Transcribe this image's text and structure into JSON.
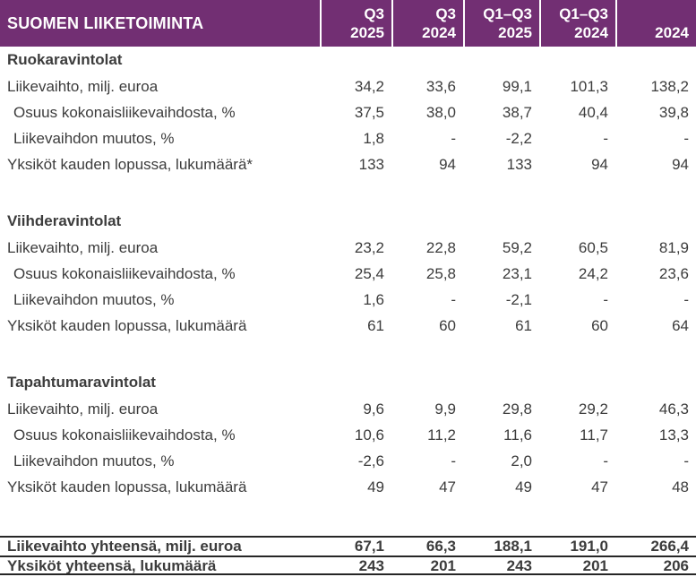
{
  "colors": {
    "header_bg": "#722F73",
    "header_text": "#FFFFFF",
    "body_text": "#3C3C3C",
    "rule": "#262626",
    "page_bg": "#FFFFFF"
  },
  "chart_data": {
    "type": "table",
    "title": "SUOMEN LIIKETOIMINTA",
    "columns": [
      {
        "top": "Q3",
        "bottom": "2025"
      },
      {
        "top": "Q3",
        "bottom": "2024"
      },
      {
        "top": "Q1–Q3",
        "bottom": "2025"
      },
      {
        "top": "Q1–Q3",
        "bottom": "2024"
      },
      {
        "top": "",
        "bottom": "2024"
      }
    ],
    "sections": [
      {
        "name": "Ruokaravintolat",
        "rows": [
          {
            "label": "Liikevaihto, milj. euroa",
            "indent": false,
            "values": [
              "34,2",
              "33,6",
              "99,1",
              "101,3",
              "138,2"
            ]
          },
          {
            "label": "Osuus kokonaisliikevaihdosta, %",
            "indent": true,
            "values": [
              "37,5",
              "38,0",
              "38,7",
              "40,4",
              "39,8"
            ]
          },
          {
            "label": "Liikevaihdon muutos, %",
            "indent": true,
            "values": [
              "1,8",
              "-",
              "-2,2",
              "-",
              "-"
            ]
          },
          {
            "label": "Yksiköt kauden lopussa, lukumäärä*",
            "indent": false,
            "values": [
              "133",
              "94",
              "133",
              "94",
              "94"
            ]
          }
        ]
      },
      {
        "name": "Viihderavintolat",
        "rows": [
          {
            "label": "Liikevaihto, milj. euroa",
            "indent": false,
            "values": [
              "23,2",
              "22,8",
              "59,2",
              "60,5",
              "81,9"
            ]
          },
          {
            "label": "Osuus kokonaisliikevaihdosta, %",
            "indent": true,
            "values": [
              "25,4",
              "25,8",
              "23,1",
              "24,2",
              "23,6"
            ]
          },
          {
            "label": "Liikevaihdon muutos, %",
            "indent": true,
            "values": [
              "1,6",
              "-",
              "-2,1",
              "-",
              "-"
            ]
          },
          {
            "label": "Yksiköt kauden lopussa, lukumäärä",
            "indent": false,
            "values": [
              "61",
              "60",
              "61",
              "60",
              "64"
            ]
          }
        ]
      },
      {
        "name": "Tapahtumaravintolat",
        "rows": [
          {
            "label": "Liikevaihto, milj. euroa",
            "indent": false,
            "values": [
              "9,6",
              "9,9",
              "29,8",
              "29,2",
              "46,3"
            ]
          },
          {
            "label": "Osuus kokonaisliikevaihdosta, %",
            "indent": true,
            "values": [
              "10,6",
              "11,2",
              "11,6",
              "11,7",
              "13,3"
            ]
          },
          {
            "label": "Liikevaihdon muutos, %",
            "indent": true,
            "values": [
              "-2,6",
              "-",
              "2,0",
              "-",
              "-"
            ]
          },
          {
            "label": "Yksiköt kauden lopussa, lukumäärä",
            "indent": false,
            "values": [
              "49",
              "47",
              "49",
              "47",
              "48"
            ]
          }
        ]
      }
    ],
    "totals": [
      {
        "label": "Liikevaihto yhteensä, milj. euroa",
        "values": [
          "67,1",
          "66,3",
          "188,1",
          "191,0",
          "266,4"
        ]
      },
      {
        "label": "Yksiköt yhteensä, lukumäärä",
        "values": [
          "243",
          "201",
          "243",
          "201",
          "206"
        ]
      }
    ]
  }
}
